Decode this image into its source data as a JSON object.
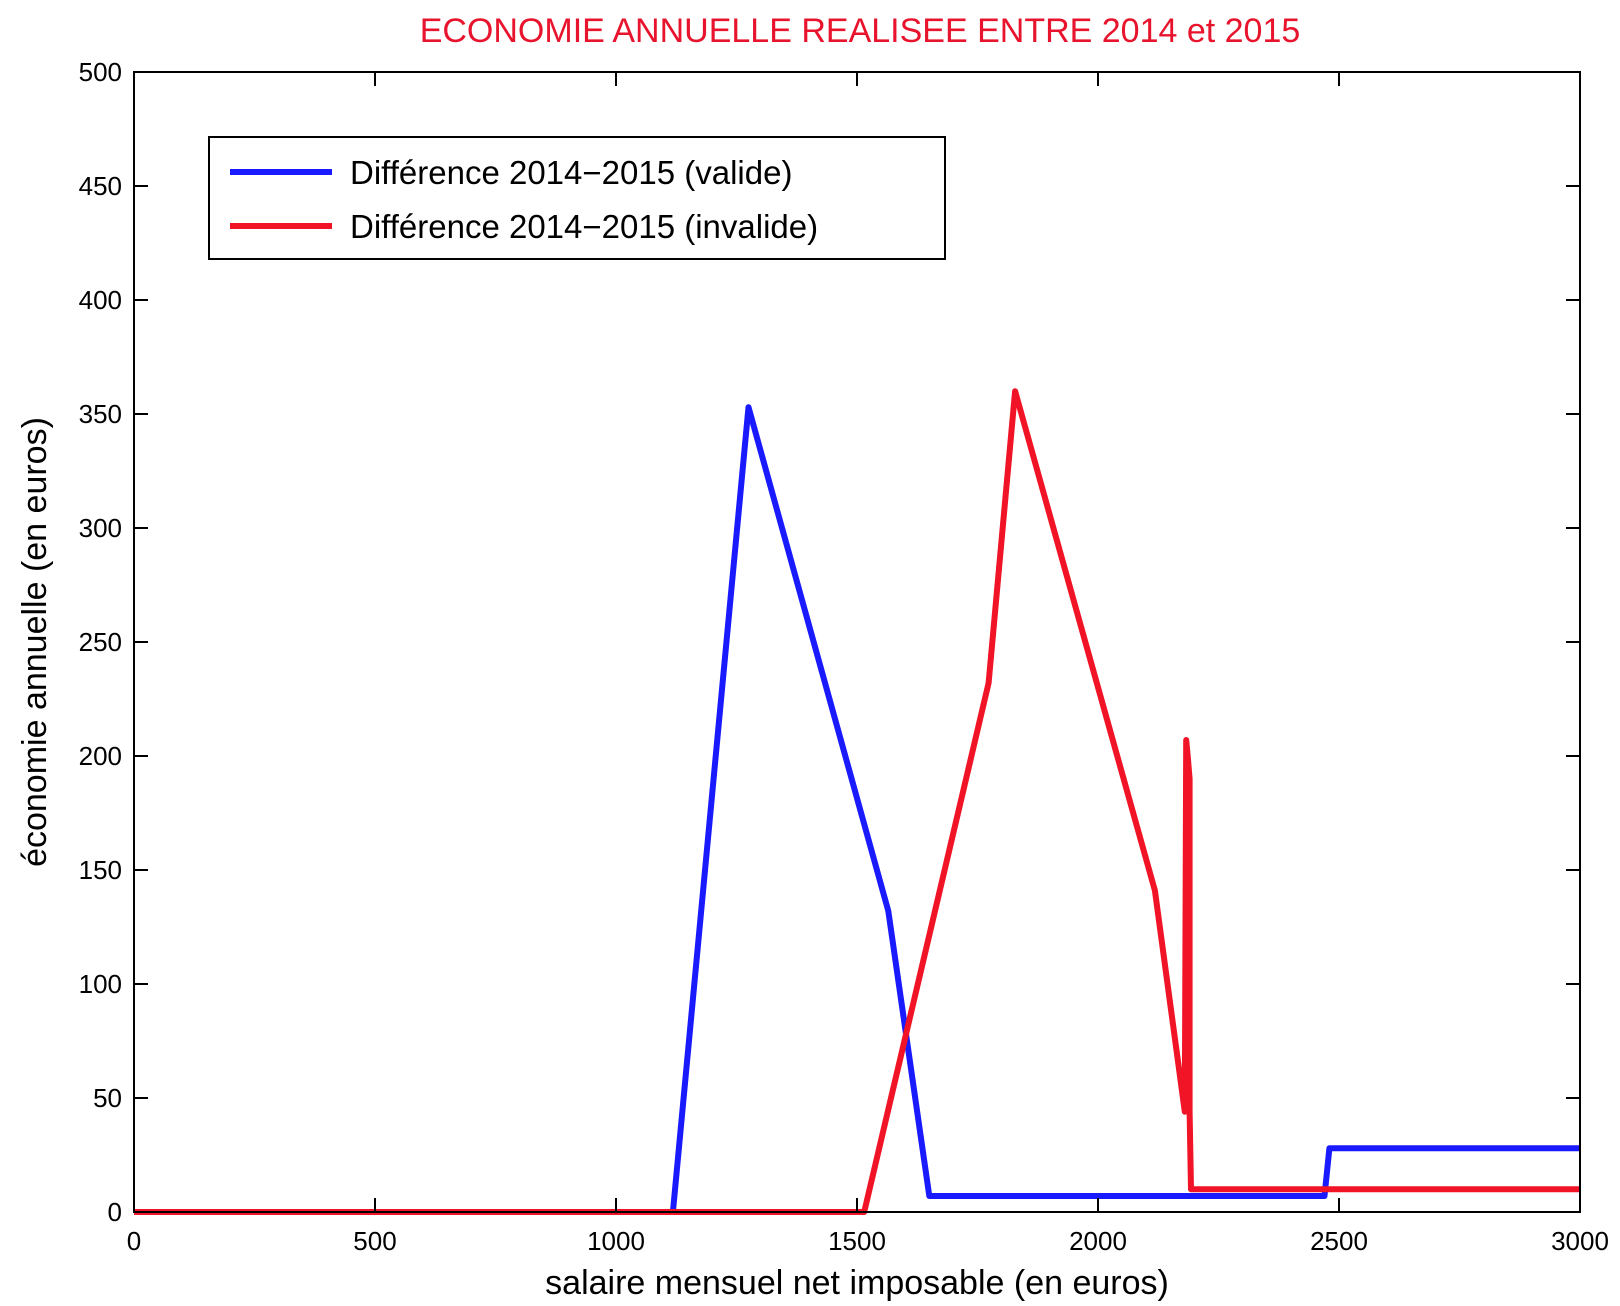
{
  "chart_data": {
    "type": "line",
    "title": "ECONOMIE ANNUELLE REALISEE ENTRE 2014 et 2015",
    "title_color": "#e8142d",
    "xlabel": "salaire mensuel net imposable (en euros)",
    "ylabel": "économie annuelle (en euros)",
    "xlim": [
      0,
      3000
    ],
    "ylim": [
      0,
      500
    ],
    "xticks": [
      0,
      500,
      1000,
      1500,
      2000,
      2500,
      3000
    ],
    "yticks": [
      0,
      50,
      100,
      150,
      200,
      250,
      300,
      350,
      400,
      450,
      500
    ],
    "grid": false,
    "legend_position": "top-left",
    "series": [
      {
        "name": "Différence 2014−2015 (valide)",
        "color": "#1a1aff",
        "x": [
          0,
          1118,
          1275,
          1565,
          1650,
          2470,
          2480,
          3000
        ],
        "y": [
          0,
          0,
          353,
          132,
          7,
          7,
          28,
          28
        ]
      },
      {
        "name": "Différence 2014−2015 (invalide)",
        "color": "#f01426",
        "x": [
          0,
          1515,
          1773,
          1828,
          2118,
          2180,
          2183,
          2186,
          2190,
          2190,
          2193,
          3000
        ],
        "y": [
          0,
          0,
          232,
          360,
          141,
          44,
          207,
          200,
          190,
          44,
          10,
          10
        ]
      }
    ]
  }
}
